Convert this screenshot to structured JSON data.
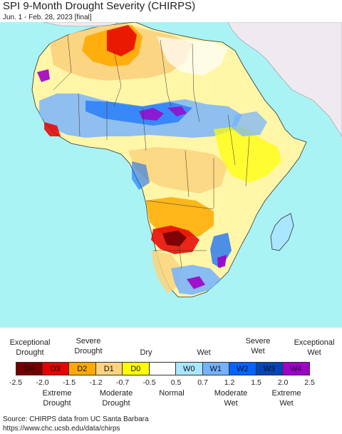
{
  "title": "SPI 9-Month Drought Severity (CHIRPS)",
  "subtitle": "Jun. 1 - Feb. 28, 2023 [final]",
  "legend": {
    "top_labels": [
      "Exceptional\nDrought",
      "Severe\nDrought",
      "Dry",
      "Wet",
      "Severe\nWet",
      "Exceptional\nWet"
    ],
    "bottom_labels": [
      "Extreme\nDrought",
      "Moderate\nDrought",
      "Normal",
      "Moderate\nWet",
      "Extreme\nWet"
    ],
    "classes": [
      {
        "code": "D4",
        "color": "#730000"
      },
      {
        "code": "D3",
        "color": "#e60000"
      },
      {
        "code": "D2",
        "color": "#ffaa00"
      },
      {
        "code": "D1",
        "color": "#fcd37f"
      },
      {
        "code": "D0",
        "color": "#ffff00"
      },
      {
        "code": "",
        "color": "#ffffff"
      },
      {
        "code": "W0",
        "color": "#aae6ff"
      },
      {
        "code": "W1",
        "color": "#73b2ff"
      },
      {
        "code": "W2",
        "color": "#0064ff"
      },
      {
        "code": "W3",
        "color": "#0046b4"
      },
      {
        "code": "W4",
        "color": "#a000c8"
      }
    ],
    "ticks": [
      "-2.5",
      "-2.0",
      "-1.5",
      "-1.2",
      "-0.7",
      "-0.5",
      "0.5",
      "0.7",
      "1.2",
      "1.5",
      "2.0",
      "2.5"
    ]
  },
  "source": {
    "line1": "Source: CHIRPS data from UC Santa Barbara",
    "line2": "https://www.chc.ucsb.edu/data/chirps"
  }
}
